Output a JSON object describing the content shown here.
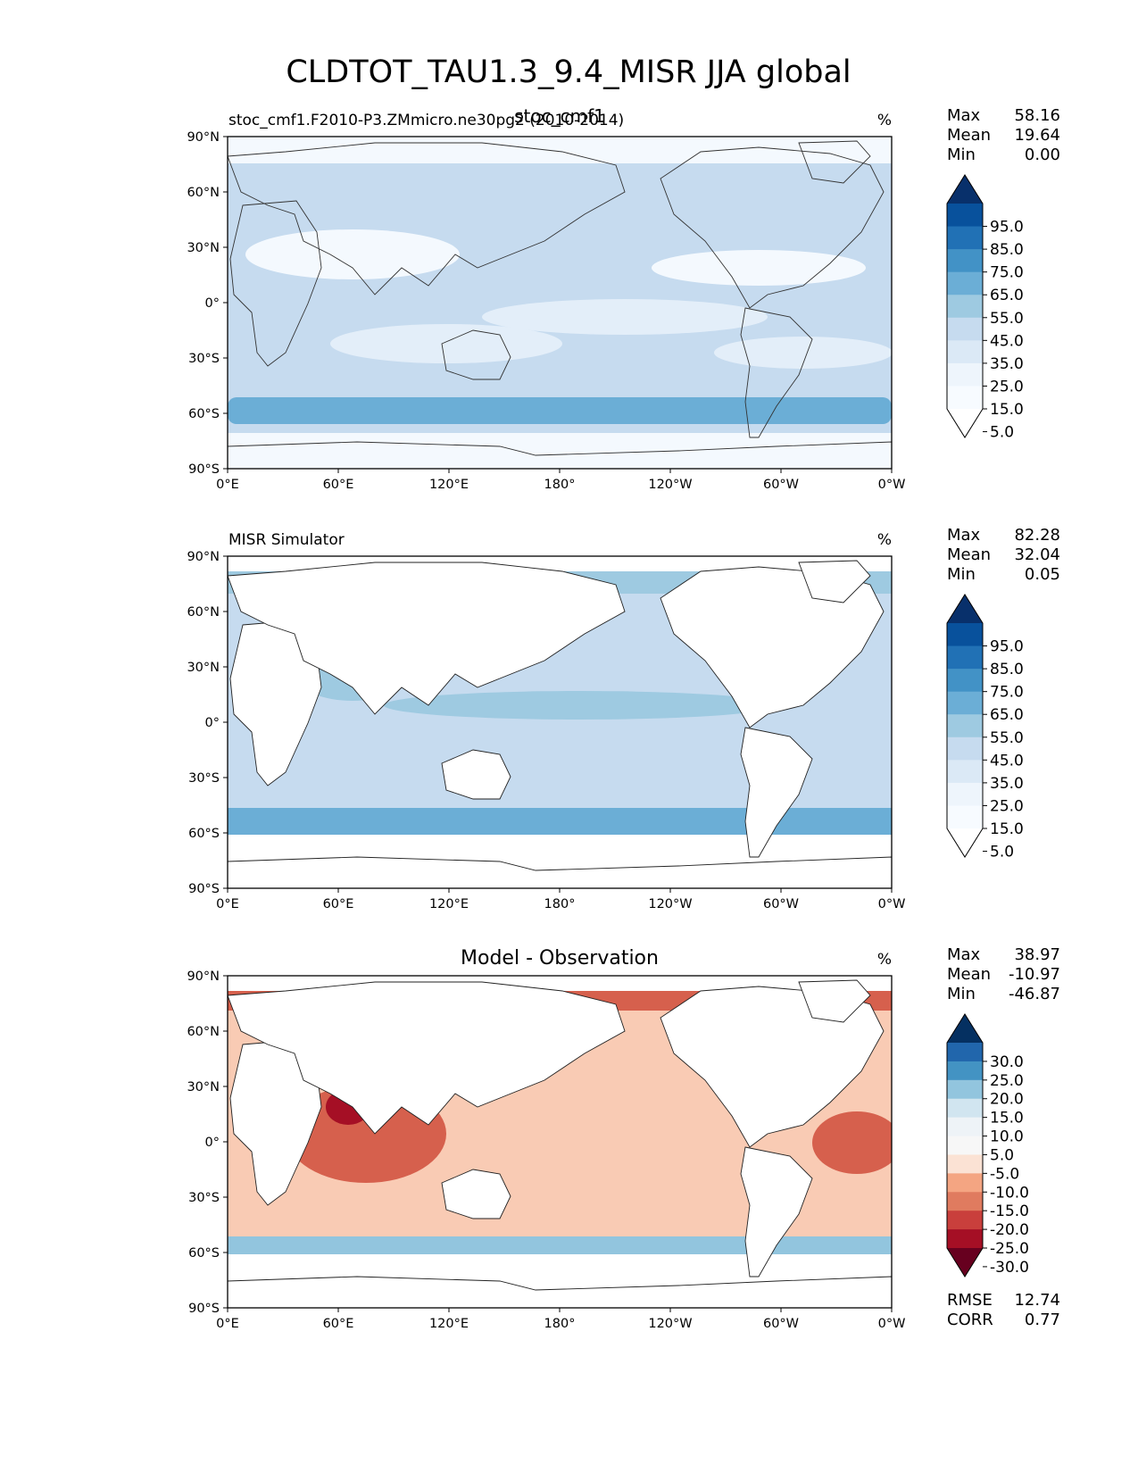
{
  "figure": {
    "title": "CLDTOT_TAU1.3_9.4_MISR JJA global"
  },
  "axes": {
    "lat_ticks": [
      "90°N",
      "60°N",
      "30°N",
      "0°",
      "30°S",
      "60°S",
      "90°S"
    ],
    "lon_ticks": [
      "0°E",
      "60°E",
      "120°E",
      "180°",
      "120°W",
      "60°W",
      "0°W"
    ]
  },
  "panels": [
    {
      "left_title": "stoc_cmf1.F2010-P3.ZMmicro.ne30pg2 (2010-2014)",
      "center_title": "stoc_cmf1",
      "units": "%",
      "stats": {
        "max_label": "Max",
        "max": "58.16",
        "mean_label": "Mean",
        "mean": "19.64",
        "min_label": "Min",
        "min": "0.00"
      },
      "colorbar": {
        "levels": [
          "95.0",
          "85.0",
          "75.0",
          "65.0",
          "55.0",
          "45.0",
          "35.0",
          "25.0",
          "15.0",
          "5.0"
        ],
        "colors": [
          "#08306b",
          "#08519c",
          "#2171b5",
          "#4292c6",
          "#6baed6",
          "#9ecae1",
          "#c6dbef",
          "#dbe9f6",
          "#eef5fc",
          "#f7fbff",
          "#ffffff"
        ]
      }
    },
    {
      "left_title": "MISR Simulator",
      "center_title": "",
      "units": "%",
      "stats": {
        "max_label": "Max",
        "max": "82.28",
        "mean_label": "Mean",
        "mean": "32.04",
        "min_label": "Min",
        "min": "0.05"
      },
      "colorbar": {
        "levels": [
          "95.0",
          "85.0",
          "75.0",
          "65.0",
          "55.0",
          "45.0",
          "35.0",
          "25.0",
          "15.0",
          "5.0"
        ],
        "colors": [
          "#08306b",
          "#08519c",
          "#2171b5",
          "#4292c6",
          "#6baed6",
          "#9ecae1",
          "#c6dbef",
          "#dbe9f6",
          "#eef5fc",
          "#f7fbff",
          "#ffffff"
        ]
      }
    },
    {
      "left_title": "",
      "center_title": "Model - Observation",
      "units": "%",
      "stats": {
        "max_label": "Max",
        "max": "38.97",
        "mean_label": "Mean",
        "mean": "-10.97",
        "min_label": "Min",
        "min": "-46.87"
      },
      "colorbar": {
        "levels": [
          "30.0",
          "25.0",
          "20.0",
          "15.0",
          "10.0",
          "5.0",
          "-5.0",
          "-10.0",
          "-15.0",
          "-20.0",
          "-25.0",
          "-30.0"
        ],
        "colors": [
          "#053061",
          "#2166ac",
          "#4393c3",
          "#92c5de",
          "#d1e5f0",
          "#eef3f7",
          "#f7f7f7",
          "#fbe2d4",
          "#f4a582",
          "#e07b5f",
          "#c93f3c",
          "#a50f25",
          "#67001f"
        ]
      },
      "metrics": {
        "rmse_label": "RMSE",
        "rmse": "12.74",
        "corr_label": "CORR",
        "corr": "0.77"
      }
    }
  ],
  "style": {
    "land_color": "#ffffff",
    "panel1_ocean": "#c6dbef",
    "panel1_band": "#e3eef9",
    "panel1_light": "#f4f9fe",
    "panel1_storm": "#6baed6",
    "panel2_ocean": "#c6dbef",
    "panel2_band": "#9ecae1",
    "panel2_storm": "#6baed6",
    "panel3_ocean": "#f9cbb4",
    "panel3_strong": "#d6604d",
    "panel3_peak": "#a50f25",
    "panel3_pos": "#92c5de"
  }
}
